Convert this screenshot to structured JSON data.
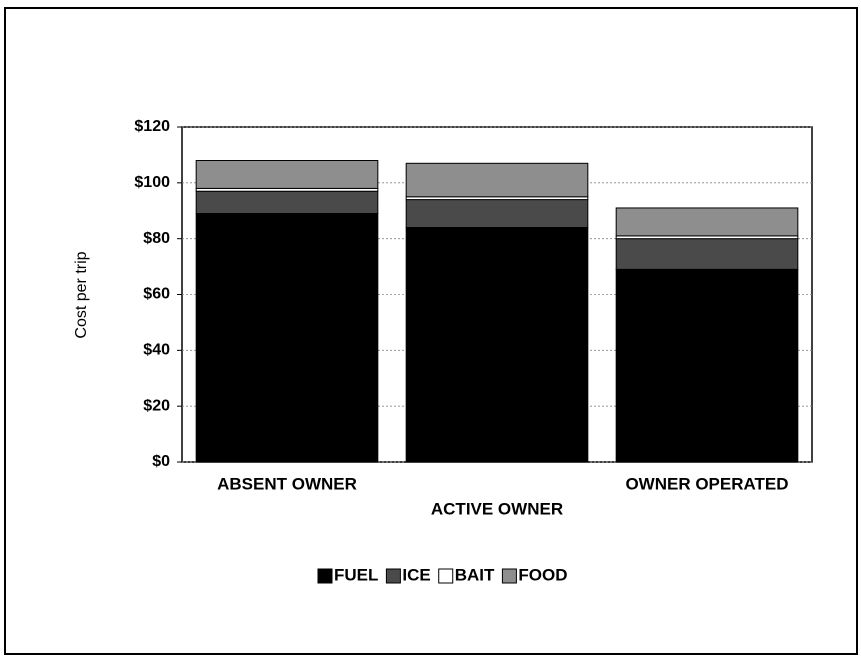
{
  "chart_data": {
    "type": "stacked_bar",
    "y_label": "Cost per trip",
    "categories": [
      "ABSENT OWNER",
      "ACTIVE OWNER",
      "OWNER OPERATED"
    ],
    "series": [
      {
        "name": "FUEL",
        "color": "#000000",
        "values": [
          89,
          84,
          69
        ]
      },
      {
        "name": "ICE",
        "color": "#4a4a4a",
        "values": [
          8,
          10,
          11
        ]
      },
      {
        "name": "BAIT",
        "color": "#ffffff",
        "values": [
          1,
          1,
          1
        ]
      },
      {
        "name": "FOOD",
        "color": "#8e8e8e",
        "values": [
          10,
          12,
          10
        ]
      }
    ],
    "ylim": [
      0,
      120
    ],
    "yticks": [
      {
        "value": 0,
        "label": "$0"
      },
      {
        "value": 20,
        "label": "$20"
      },
      {
        "value": 40,
        "label": "$40"
      },
      {
        "value": 60,
        "label": "$60"
      },
      {
        "value": 80,
        "label": "$80"
      },
      {
        "value": 100,
        "label": "$100"
      },
      {
        "value": 120,
        "label": "$120"
      }
    ],
    "grid": true
  }
}
